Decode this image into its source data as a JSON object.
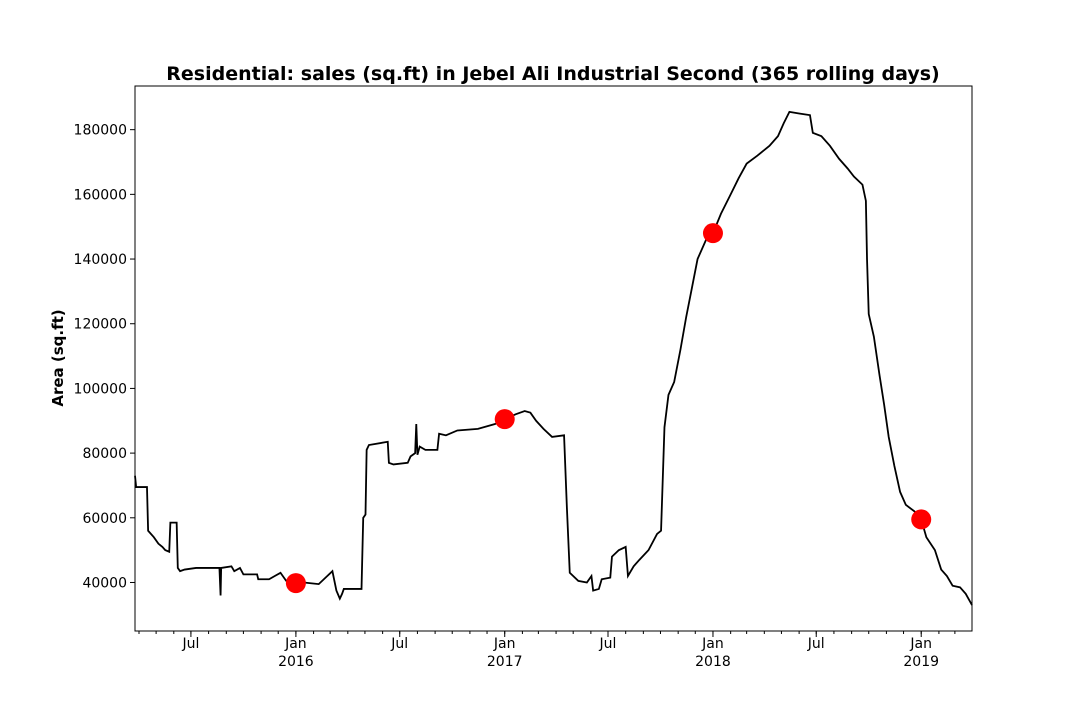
{
  "chart_data": {
    "type": "line",
    "title": "Residential: sales (sq.ft) in Jebel Ali Industrial Second (365 rolling days)",
    "xlabel": "",
    "ylabel": "Area (sq.ft)",
    "xlim": [
      "2015-03-25",
      "2019-03-31"
    ],
    "ylim": [
      25000,
      193500
    ],
    "grid": false,
    "y_ticks": [
      40000,
      60000,
      80000,
      100000,
      120000,
      140000,
      160000,
      180000
    ],
    "x_ticks": [
      {
        "date": "2015-07-01",
        "label": "Jul",
        "sub": ""
      },
      {
        "date": "2016-01-01",
        "label": "Jan",
        "sub": "2016"
      },
      {
        "date": "2016-07-01",
        "label": "Jul",
        "sub": ""
      },
      {
        "date": "2017-01-01",
        "label": "Jan",
        "sub": "2017"
      },
      {
        "date": "2017-07-01",
        "label": "Jul",
        "sub": ""
      },
      {
        "date": "2018-01-01",
        "label": "Jan",
        "sub": "2018"
      },
      {
        "date": "2018-07-01",
        "label": "Jul",
        "sub": ""
      },
      {
        "date": "2019-01-01",
        "label": "Jan",
        "sub": "2019"
      }
    ],
    "series": [
      {
        "color": "#000000",
        "points": [
          [
            "2015-03-25",
            73000
          ],
          [
            "2015-03-27",
            69500
          ],
          [
            "2015-04-15",
            69500
          ],
          [
            "2015-04-17",
            56000
          ],
          [
            "2015-04-27",
            54000
          ],
          [
            "2015-05-05",
            52000
          ],
          [
            "2015-05-12",
            51000
          ],
          [
            "2015-05-17",
            50000
          ],
          [
            "2015-05-24",
            49500
          ],
          [
            "2015-05-26",
            58500
          ],
          [
            "2015-06-06",
            58500
          ],
          [
            "2015-06-08",
            44500
          ],
          [
            "2015-06-12",
            43500
          ],
          [
            "2015-06-20",
            44000
          ],
          [
            "2015-07-10",
            44500
          ],
          [
            "2015-08-20",
            44500
          ],
          [
            "2015-08-22",
            36000
          ],
          [
            "2015-08-23",
            44500
          ],
          [
            "2015-09-10",
            45000
          ],
          [
            "2015-09-15",
            43500
          ],
          [
            "2015-09-25",
            44500
          ],
          [
            "2015-10-01",
            42500
          ],
          [
            "2015-10-25",
            42500
          ],
          [
            "2015-10-27",
            41000
          ],
          [
            "2015-11-15",
            41000
          ],
          [
            "2015-11-25",
            42000
          ],
          [
            "2015-12-05",
            43000
          ],
          [
            "2015-12-15",
            40500
          ],
          [
            "2016-01-01",
            39800
          ],
          [
            "2016-01-15",
            40000
          ],
          [
            "2016-02-10",
            39500
          ],
          [
            "2016-02-25",
            42000
          ],
          [
            "2016-03-05",
            43500
          ],
          [
            "2016-03-12",
            37500
          ],
          [
            "2016-03-18",
            35000
          ],
          [
            "2016-03-22",
            36500
          ],
          [
            "2016-03-25",
            38000
          ],
          [
            "2016-04-25",
            38000
          ],
          [
            "2016-04-28",
            60000
          ],
          [
            "2016-05-02",
            61000
          ],
          [
            "2016-05-04",
            81000
          ],
          [
            "2016-05-08",
            82500
          ],
          [
            "2016-06-10",
            83500
          ],
          [
            "2016-06-12",
            77000
          ],
          [
            "2016-06-20",
            76500
          ],
          [
            "2016-07-15",
            77000
          ],
          [
            "2016-07-20",
            79000
          ],
          [
            "2016-07-28",
            80000
          ],
          [
            "2016-07-30",
            89000
          ],
          [
            "2016-08-01",
            79500
          ],
          [
            "2016-08-05",
            82000
          ],
          [
            "2016-08-15",
            81000
          ],
          [
            "2016-09-05",
            81000
          ],
          [
            "2016-09-08",
            86000
          ],
          [
            "2016-09-20",
            85500
          ],
          [
            "2016-10-10",
            87000
          ],
          [
            "2016-11-15",
            87500
          ],
          [
            "2016-12-15",
            89000
          ],
          [
            "2017-01-01",
            90500
          ],
          [
            "2017-01-20",
            92000
          ],
          [
            "2017-02-05",
            93000
          ],
          [
            "2017-02-15",
            92500
          ],
          [
            "2017-02-25",
            90000
          ],
          [
            "2017-03-10",
            87500
          ],
          [
            "2017-03-25",
            85000
          ],
          [
            "2017-04-15",
            85500
          ],
          [
            "2017-04-20",
            63000
          ],
          [
            "2017-04-25",
            43000
          ],
          [
            "2017-05-10",
            40500
          ],
          [
            "2017-05-25",
            40000
          ],
          [
            "2017-06-02",
            42000
          ],
          [
            "2017-06-05",
            37500
          ],
          [
            "2017-06-15",
            38000
          ],
          [
            "2017-06-20",
            41000
          ],
          [
            "2017-07-05",
            41500
          ],
          [
            "2017-07-08",
            48000
          ],
          [
            "2017-07-20",
            50000
          ],
          [
            "2017-08-01",
            51000
          ],
          [
            "2017-08-05",
            42000
          ],
          [
            "2017-08-15",
            45000
          ],
          [
            "2017-08-25",
            47000
          ],
          [
            "2017-09-10",
            50000
          ],
          [
            "2017-09-25",
            55000
          ],
          [
            "2017-10-02",
            56000
          ],
          [
            "2017-10-05",
            72000
          ],
          [
            "2017-10-08",
            88000
          ],
          [
            "2017-10-15",
            98000
          ],
          [
            "2017-10-25",
            102000
          ],
          [
            "2017-11-05",
            112000
          ],
          [
            "2017-11-15",
            122000
          ],
          [
            "2017-11-25",
            131000
          ],
          [
            "2017-12-05",
            140000
          ],
          [
            "2017-12-20",
            146000
          ],
          [
            "2018-01-01",
            148000
          ],
          [
            "2018-01-15",
            154000
          ],
          [
            "2018-02-01",
            160000
          ],
          [
            "2018-02-15",
            165000
          ],
          [
            "2018-03-01",
            169500
          ],
          [
            "2018-03-20",
            172000
          ],
          [
            "2018-04-10",
            175000
          ],
          [
            "2018-04-25",
            178000
          ],
          [
            "2018-05-05",
            182000
          ],
          [
            "2018-05-15",
            185500
          ],
          [
            "2018-06-01",
            185000
          ],
          [
            "2018-06-20",
            184500
          ],
          [
            "2018-06-25",
            179000
          ],
          [
            "2018-07-10",
            178000
          ],
          [
            "2018-07-25",
            175000
          ],
          [
            "2018-08-10",
            171000
          ],
          [
            "2018-08-25",
            168000
          ],
          [
            "2018-09-05",
            165500
          ],
          [
            "2018-09-20",
            163000
          ],
          [
            "2018-09-26",
            158000
          ],
          [
            "2018-09-28",
            140000
          ],
          [
            "2018-10-01",
            123000
          ],
          [
            "2018-10-10",
            116000
          ],
          [
            "2018-10-20",
            104000
          ],
          [
            "2018-10-28",
            95000
          ],
          [
            "2018-11-05",
            85000
          ],
          [
            "2018-11-15",
            76000
          ],
          [
            "2018-11-25",
            68000
          ],
          [
            "2018-12-05",
            64000
          ],
          [
            "2018-12-20",
            62000
          ],
          [
            "2019-01-01",
            59500
          ],
          [
            "2019-01-10",
            54000
          ],
          [
            "2019-01-25",
            50000
          ],
          [
            "2019-02-05",
            44000
          ],
          [
            "2019-02-15",
            42000
          ],
          [
            "2019-02-25",
            39000
          ],
          [
            "2019-03-10",
            38500
          ],
          [
            "2019-03-20",
            36500
          ],
          [
            "2019-03-31",
            33000
          ]
        ]
      }
    ],
    "markers": [
      {
        "date": "2016-01-01",
        "value": 39800
      },
      {
        "date": "2017-01-01",
        "value": 90500
      },
      {
        "date": "2018-01-01",
        "value": 148000
      },
      {
        "date": "2019-01-01",
        "value": 59500
      }
    ],
    "marker_color": "#ff0000",
    "line_color": "#000000"
  }
}
